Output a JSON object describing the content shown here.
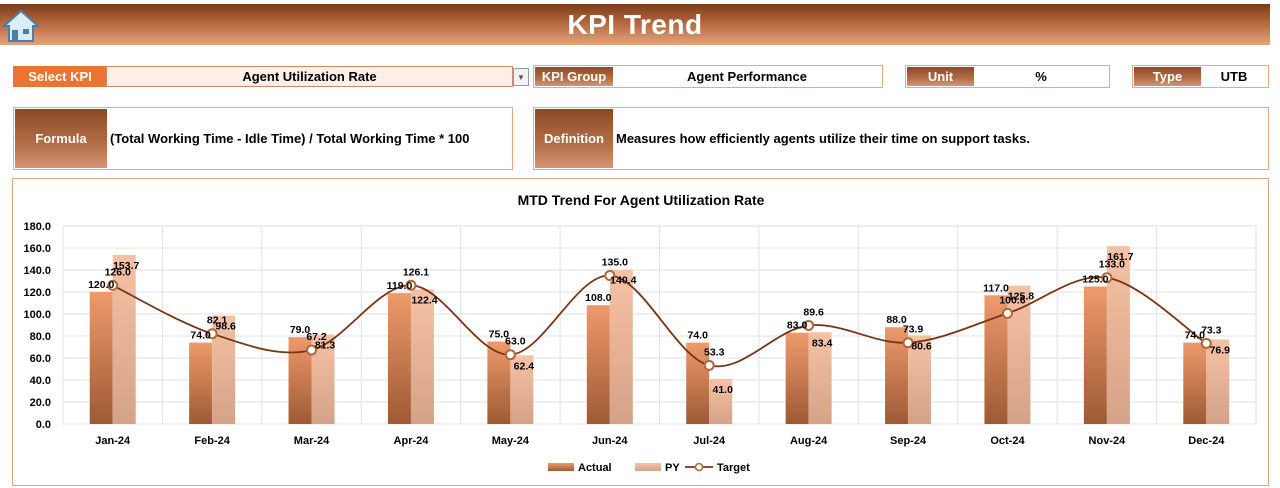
{
  "header": {
    "title": "KPI Trend",
    "home_icon": "home-icon"
  },
  "selectors": {
    "select_kpi_label": "Select KPI",
    "select_kpi_value": "Agent Utilization Rate",
    "kpi_group_label": "KPI Group",
    "kpi_group_value": "Agent Performance",
    "unit_label": "Unit",
    "unit_value": "%",
    "type_label": "Type",
    "type_value": "UTB"
  },
  "info": {
    "formula_label": "Formula",
    "formula_value": "(Total Working Time - Idle Time) / Total Working Time * 100",
    "definition_label": "Definition",
    "definition_value": "Measures how efficiently agents utilize their time on support tasks."
  },
  "colors": {
    "actual_top": "#ee9a6c",
    "actual_bottom": "#9e5a34",
    "py_top": "#f6c2a6",
    "py_bottom": "#d4a286",
    "target_line": "#7a3414",
    "accent_orange": "#ec7430"
  },
  "chart_data": {
    "type": "bar",
    "title": "MTD Trend For Agent Utilization Rate",
    "categories": [
      "Jan-24",
      "Feb-24",
      "Mar-24",
      "Apr-24",
      "May-24",
      "Jun-24",
      "Jul-24",
      "Aug-24",
      "Sep-24",
      "Oct-24",
      "Nov-24",
      "Dec-24"
    ],
    "ylim": [
      0,
      180
    ],
    "yticks": [
      "0.0",
      "20.0",
      "40.0",
      "60.0",
      "80.0",
      "100.0",
      "120.0",
      "140.0",
      "160.0",
      "180.0"
    ],
    "grid": true,
    "legend": "bottom",
    "series": [
      {
        "name": "Actual",
        "kind": "bar",
        "values": [
          120.0,
          74.0,
          79.0,
          119.0,
          75.0,
          108.0,
          74.0,
          83.0,
          88.0,
          117.0,
          125.0,
          74.0
        ],
        "labels": [
          "120.0",
          "74.0",
          "79.0",
          "119.0",
          "75.0",
          "108.0",
          "74.0",
          "83.0",
          "88.0",
          "117.0",
          "125.0",
          "74.0"
        ]
      },
      {
        "name": "PY",
        "kind": "bar",
        "values": [
          153.7,
          98.6,
          81.3,
          122.4,
          62.4,
          140.4,
          41.0,
          83.4,
          80.6,
          125.8,
          161.7,
          76.9
        ],
        "labels": [
          "153.7",
          "98.6",
          "81.3",
          "122.4",
          "62.4",
          "140.4",
          "41.0",
          "83.4",
          "80.6",
          "125.8",
          "161.7",
          "76.9"
        ]
      },
      {
        "name": "Target",
        "kind": "line",
        "values": [
          126.0,
          82.1,
          67.2,
          126.1,
          63.0,
          135.0,
          53.3,
          89.6,
          73.9,
          100.6,
          133.0,
          73.3
        ],
        "labels": [
          "126.0",
          "82.1",
          "67.2",
          "126.1",
          "63.0",
          "135.0",
          "53.3",
          "89.6",
          "73.9",
          "100.6",
          "133.0",
          "73.3"
        ]
      }
    ]
  }
}
